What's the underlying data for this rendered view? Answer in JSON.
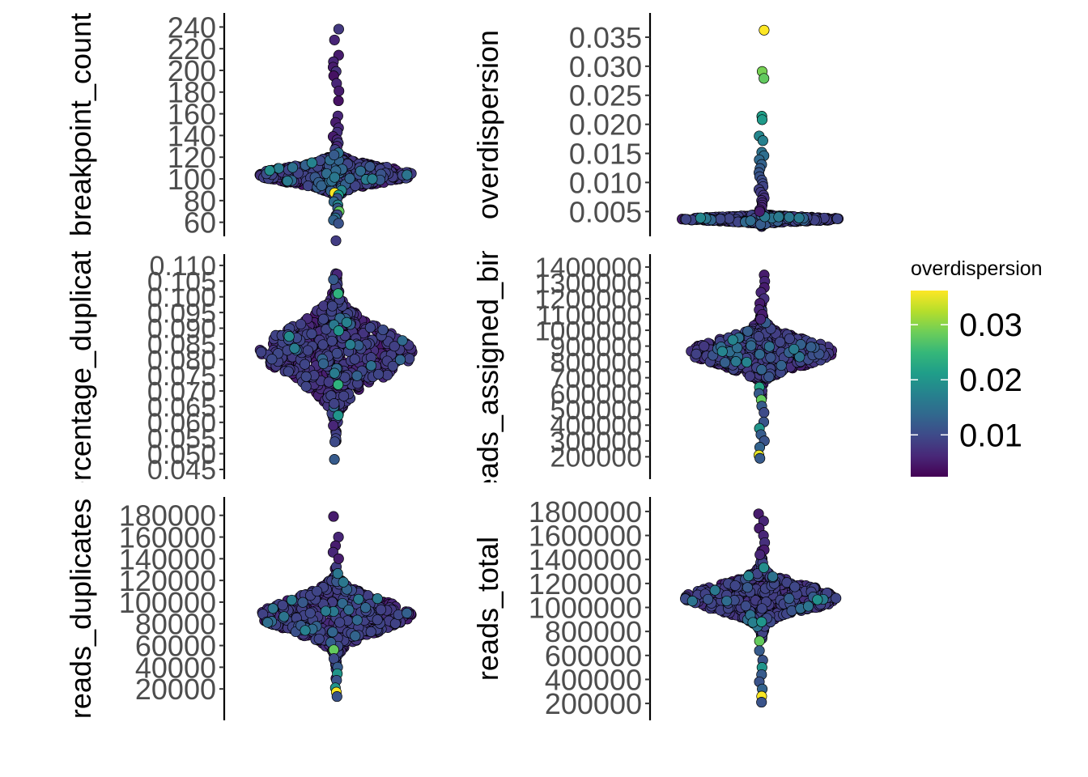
{
  "chart_data": [
    {
      "type": "scatter",
      "subtype": "beeswarm",
      "ylabel": "breakpoint_count",
      "ylim": [
        56,
        244
      ],
      "yticks": [
        60,
        80,
        100,
        120,
        140,
        160,
        180,
        200,
        220,
        240
      ],
      "ytick_labels": [
        "60",
        "80",
        "100",
        "120",
        "140",
        "160",
        "180",
        "200",
        "220",
        "240"
      ],
      "color_by": "overdispersion",
      "core": {
        "center": 104,
        "spread": 9,
        "count": 620
      },
      "points": [
        {
          "y": 238,
          "color": 0.008
        },
        {
          "y": 228,
          "color": 0.006
        },
        {
          "y": 214,
          "color": 0.005
        },
        {
          "y": 208,
          "color": 0.006
        },
        {
          "y": 203,
          "color": 0.005
        },
        {
          "y": 199,
          "color": 0.007
        },
        {
          "y": 195,
          "color": 0.004
        },
        {
          "y": 188,
          "color": 0.006
        },
        {
          "y": 181,
          "color": 0.005
        },
        {
          "y": 172,
          "color": 0.004
        },
        {
          "y": 158,
          "color": 0.006
        },
        {
          "y": 152,
          "color": 0.005
        },
        {
          "y": 147,
          "color": 0.006
        },
        {
          "y": 143,
          "color": 0.007
        },
        {
          "y": 139,
          "color": 0.005
        },
        {
          "y": 136,
          "color": 0.006
        },
        {
          "y": 133,
          "color": 0.008
        },
        {
          "y": 130,
          "color": 0.006
        },
        {
          "y": 127,
          "color": 0.009
        },
        {
          "y": 124,
          "color": 0.015
        },
        {
          "y": 122,
          "color": 0.012
        },
        {
          "y": 87,
          "color": 0.036
        },
        {
          "y": 85,
          "color": 0.021
        },
        {
          "y": 82,
          "color": 0.011
        },
        {
          "y": 79,
          "color": 0.014
        },
        {
          "y": 76,
          "color": 0.018
        },
        {
          "y": 73,
          "color": 0.012
        },
        {
          "y": 70,
          "color": 0.028
        },
        {
          "y": 67,
          "color": 0.01
        },
        {
          "y": 64,
          "color": 0.015
        },
        {
          "y": 62,
          "color": 0.013
        },
        {
          "y": 59,
          "color": 0.011
        }
      ]
    },
    {
      "type": "scatter",
      "subtype": "beeswarm",
      "ylabel": "overdispersion",
      "ylim": [
        0.0024,
        0.0375
      ],
      "yticks": [
        0.005,
        0.01,
        0.015,
        0.02,
        0.025,
        0.03,
        0.035
      ],
      "ytick_labels": [
        "0.005",
        "0.010",
        "0.015",
        "0.020",
        "0.025",
        "0.030",
        "0.035"
      ],
      "color_by": "overdispersion",
      "core": {
        "center": 0.0037,
        "spread": 0.0004,
        "count": 520
      },
      "points": [
        {
          "y": 0.0362,
          "color": 0.0362
        },
        {
          "y": 0.0291,
          "color": 0.0291
        },
        {
          "y": 0.0279,
          "color": 0.0279
        },
        {
          "y": 0.0214,
          "color": 0.0214
        },
        {
          "y": 0.0208,
          "color": 0.0208
        },
        {
          "y": 0.018,
          "color": 0.018
        },
        {
          "y": 0.0172,
          "color": 0.0172
        },
        {
          "y": 0.0152,
          "color": 0.0152
        },
        {
          "y": 0.0146,
          "color": 0.0146
        },
        {
          "y": 0.0139,
          "color": 0.0139
        },
        {
          "y": 0.0131,
          "color": 0.0131
        },
        {
          "y": 0.0124,
          "color": 0.0124
        },
        {
          "y": 0.0117,
          "color": 0.0117
        },
        {
          "y": 0.011,
          "color": 0.011
        },
        {
          "y": 0.0104,
          "color": 0.0104
        },
        {
          "y": 0.0098,
          "color": 0.0098
        },
        {
          "y": 0.0093,
          "color": 0.0093
        },
        {
          "y": 0.0088,
          "color": 0.0088
        },
        {
          "y": 0.0083,
          "color": 0.0083
        },
        {
          "y": 0.0078,
          "color": 0.0078
        },
        {
          "y": 0.0073,
          "color": 0.0073
        },
        {
          "y": 0.0069,
          "color": 0.0069
        },
        {
          "y": 0.0065,
          "color": 0.0065
        },
        {
          "y": 0.0061,
          "color": 0.0061
        },
        {
          "y": 0.0057,
          "color": 0.0057
        },
        {
          "y": 0.0053,
          "color": 0.0053
        },
        {
          "y": 0.005,
          "color": 0.005
        }
      ]
    },
    {
      "type": "scatter",
      "subtype": "beeswarm",
      "ylabel": "percentage_duplicates",
      "ylim": [
        0.045,
        0.1105
      ],
      "yticks": [
        0.045,
        0.05,
        0.055,
        0.06,
        0.065,
        0.07,
        0.075,
        0.08,
        0.085,
        0.09,
        0.095,
        0.1,
        0.105,
        0.11
      ],
      "ytick_labels": [
        "0.045",
        "0.050",
        "0.055",
        "0.060",
        "0.065",
        "0.070",
        "0.075",
        "0.080",
        "0.085",
        "0.090",
        "0.095",
        "0.100",
        "0.105",
        "0.110"
      ],
      "color_by": "overdispersion",
      "core": {
        "center": 0.0822,
        "spread": 0.0095,
        "count": 620
      },
      "points": [
        {
          "y": 0.1072,
          "color": 0.006
        },
        {
          "y": 0.1055,
          "color": 0.012
        },
        {
          "y": 0.101,
          "color": 0.024
        },
        {
          "y": 0.0892,
          "color": 0.02
        },
        {
          "y": 0.072,
          "color": 0.024
        },
        {
          "y": 0.066,
          "color": 0.009
        },
        {
          "y": 0.0622,
          "color": 0.02
        },
        {
          "y": 0.059,
          "color": 0.006
        },
        {
          "y": 0.0538,
          "color": 0.01
        },
        {
          "y": 0.0482,
          "color": 0.012
        }
      ]
    },
    {
      "type": "scatter",
      "subtype": "beeswarm",
      "ylabel": "reads_assigned_bins",
      "ylim": [
        120000,
        1420000
      ],
      "yticks": [
        200000,
        300000,
        400000,
        500000,
        600000,
        700000,
        800000,
        900000,
        1000000,
        1100000,
        1200000,
        1300000,
        1400000
      ],
      "ytick_labels": [
        "200000",
        "300000",
        "400000",
        "500000",
        "600000",
        "700000",
        "800000",
        "900000",
        "1000000",
        "1100000",
        "1200000",
        "1300000",
        "1400000"
      ],
      "color_by": "overdispersion",
      "core": {
        "center": 860000,
        "spread": 95000,
        "count": 640
      },
      "points": [
        {
          "y": 1350000,
          "color": 0.005
        },
        {
          "y": 1310000,
          "color": 0.006
        },
        {
          "y": 1270000,
          "color": 0.005
        },
        {
          "y": 1240000,
          "color": 0.006
        },
        {
          "y": 1200000,
          "color": 0.007
        },
        {
          "y": 1170000,
          "color": 0.005
        },
        {
          "y": 1130000,
          "color": 0.006
        },
        {
          "y": 1100000,
          "color": 0.005
        },
        {
          "y": 1070000,
          "color": 0.006
        },
        {
          "y": 640000,
          "color": 0.022
        },
        {
          "y": 600000,
          "color": 0.012
        },
        {
          "y": 560000,
          "color": 0.028
        },
        {
          "y": 520000,
          "color": 0.012
        },
        {
          "y": 480000,
          "color": 0.01
        },
        {
          "y": 420000,
          "color": 0.011
        },
        {
          "y": 380000,
          "color": 0.02
        },
        {
          "y": 340000,
          "color": 0.012
        },
        {
          "y": 300000,
          "color": 0.011
        },
        {
          "y": 260000,
          "color": 0.013
        },
        {
          "y": 210000,
          "color": 0.035
        },
        {
          "y": 190000,
          "color": 0.012
        }
      ]
    },
    {
      "type": "scatter",
      "subtype": "beeswarm",
      "ylabel": "reads_duplicates",
      "ylim": [
        0,
        188000
      ],
      "yticks": [
        20000,
        40000,
        60000,
        80000,
        100000,
        120000,
        140000,
        160000,
        180000
      ],
      "ytick_labels": [
        "20000",
        "40000",
        "60000",
        "80000",
        "100000",
        "120000",
        "140000",
        "160000",
        "180000"
      ],
      "color_by": "overdispersion",
      "core": {
        "center": 88000,
        "spread": 17000,
        "count": 620
      },
      "points": [
        {
          "y": 179000,
          "color": 0.005
        },
        {
          "y": 160000,
          "color": 0.006
        },
        {
          "y": 152000,
          "color": 0.005
        },
        {
          "y": 146000,
          "color": 0.006
        },
        {
          "y": 140000,
          "color": 0.005
        },
        {
          "y": 56000,
          "color": 0.028
        },
        {
          "y": 48000,
          "color": 0.01
        },
        {
          "y": 40000,
          "color": 0.012
        },
        {
          "y": 34000,
          "color": 0.02
        },
        {
          "y": 28000,
          "color": 0.011
        },
        {
          "y": 21000,
          "color": 0.02
        },
        {
          "y": 17000,
          "color": 0.036
        },
        {
          "y": 13000,
          "color": 0.011
        }
      ]
    },
    {
      "type": "scatter",
      "subtype": "beeswarm",
      "ylabel": "reads_total",
      "ylim": [
        140000,
        1840000
      ],
      "yticks": [
        200000,
        400000,
        600000,
        800000,
        1000000,
        1200000,
        1400000,
        1600000,
        1800000
      ],
      "ytick_labels": [
        "200000",
        "400000",
        "600000",
        "800000",
        "1000000",
        "1200000",
        "1400000",
        "1600000",
        "1800000"
      ],
      "color_by": "overdispersion",
      "core": {
        "center": 1080000,
        "spread": 120000,
        "count": 640
      },
      "points": [
        {
          "y": 1780000,
          "color": 0.005
        },
        {
          "y": 1720000,
          "color": 0.006
        },
        {
          "y": 1660000,
          "color": 0.005
        },
        {
          "y": 1600000,
          "color": 0.006
        },
        {
          "y": 1540000,
          "color": 0.007
        },
        {
          "y": 1480000,
          "color": 0.005
        },
        {
          "y": 1440000,
          "color": 0.006
        },
        {
          "y": 880000,
          "color": 0.02
        },
        {
          "y": 720000,
          "color": 0.028
        },
        {
          "y": 640000,
          "color": 0.012
        },
        {
          "y": 560000,
          "color": 0.011
        },
        {
          "y": 500000,
          "color": 0.02
        },
        {
          "y": 440000,
          "color": 0.012
        },
        {
          "y": 380000,
          "color": 0.011
        },
        {
          "y": 320000,
          "color": 0.013
        },
        {
          "y": 260000,
          "color": 0.036
        },
        {
          "y": 210000,
          "color": 0.011
        }
      ]
    }
  ],
  "legend": {
    "title": "overdispersion",
    "range": [
      0.0024,
      0.0362
    ],
    "breaks": [
      0.01,
      0.02,
      0.03
    ],
    "labels": [
      "0.01",
      "0.02",
      "0.03"
    ],
    "colors": [
      "#440154",
      "#482878",
      "#3e4a89",
      "#31688e",
      "#26828e",
      "#1f9e89",
      "#35b779",
      "#6ece58",
      "#b5de2b",
      "#fde725"
    ]
  },
  "style": {
    "point_outline": "#000000",
    "axis_color": "#000000",
    "tick_label_color": "#4d4d4d",
    "background": "#ffffff"
  }
}
